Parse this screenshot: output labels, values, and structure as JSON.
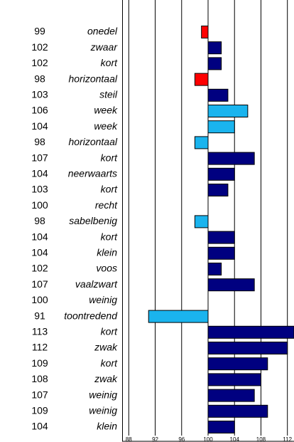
{
  "chart_data": {
    "type": "bar",
    "orientation": "horizontal",
    "categories": [
      "onedel",
      "zwaar",
      "kort",
      "horizontaal",
      "steil",
      "week",
      "week",
      "horizontaal",
      "kort",
      "neerwaarts",
      "kort",
      "recht",
      "sabelbenig",
      "kort",
      "klein",
      "voos",
      "vaalzwart",
      "weinig",
      "toontredend",
      "kort",
      "zwak",
      "kort",
      "zwak",
      "weinig",
      "weinig",
      "klein"
    ],
    "values": [
      99,
      102,
      102,
      98,
      103,
      106,
      104,
      98,
      107,
      104,
      103,
      100,
      98,
      104,
      104,
      102,
      107,
      100,
      91,
      113,
      112,
      109,
      108,
      107,
      109,
      104
    ],
    "colors": [
      "#ff0000",
      "#000080",
      "#000080",
      "#ff0000",
      "#000080",
      "#1ab4ee",
      "#1ab4ee",
      "#1ab4ee",
      "#000080",
      "#000080",
      "#000080",
      "#000080",
      "#1ab4ee",
      "#000080",
      "#000080",
      "#000080",
      "#000080",
      "#000080",
      "#1ab4ee",
      "#000080",
      "#000080",
      "#000080",
      "#000080",
      "#000080",
      "#000080",
      "#000080"
    ],
    "baseline": 100,
    "xlim": [
      87,
      113
    ],
    "xticks": [
      88,
      92,
      96,
      100,
      104,
      108,
      112
    ],
    "grid": true
  }
}
